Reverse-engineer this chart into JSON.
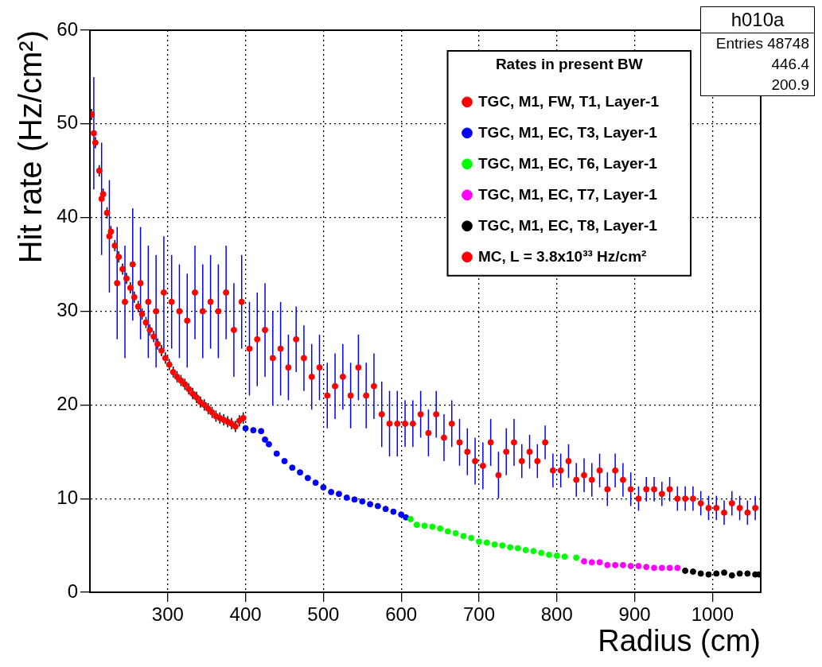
{
  "chart_data": {
    "type": "scatter",
    "xlabel": "Radius (cm)",
    "ylabel": "Hit rate (Hz/cm²)",
    "legend_title": "Rates in present BW",
    "legend": "top right",
    "grid": true,
    "marker": "circle",
    "xlim": [
      200,
      1062
    ],
    "xticks": [
      300,
      400,
      500,
      600,
      700,
      800,
      900,
      1000
    ],
    "ylim": [
      0,
      60
    ],
    "yticks": [
      0,
      10,
      20,
      30,
      40,
      50,
      60
    ],
    "annotations": [
      "h010a",
      "Entries 48748",
      "446.4",
      "200.9"
    ],
    "series": [
      {
        "name": "TGC, M1, FW, T1, Layer-1",
        "color": "#000000",
        "x": [
          202,
          207,
          212,
          217,
          222,
          227,
          232,
          237,
          242,
          247,
          252,
          257,
          262,
          267,
          272,
          277,
          282,
          287,
          292,
          297,
          302,
          307,
          312,
          317,
          322,
          327,
          332,
          337,
          342,
          347,
          352,
          357,
          362,
          367,
          372,
          377,
          382,
          387,
          392,
          397
        ],
        "values": [
          51,
          48,
          45,
          42.5,
          40.5,
          38.5,
          37,
          35.8,
          34.5,
          33.5,
          32.5,
          31.5,
          30.5,
          29.7,
          28.8,
          28,
          27.3,
          26.5,
          25.8,
          25,
          24.3,
          23.5,
          23,
          22.6,
          22.2,
          21.7,
          21.2,
          20.8,
          20.3,
          20,
          19.6,
          19.2,
          18.8,
          18.6,
          18.4,
          18.2,
          18,
          17.7,
          18.3,
          18.6
        ],
        "errors": [
          0.6,
          0.6,
          0.6,
          0.6,
          0.6,
          0.6,
          0.6,
          0.6,
          0.6,
          0.6,
          0.6,
          0.6,
          0.6,
          0.6,
          0.6,
          0.6,
          0.6,
          0.6,
          0.6,
          0.6,
          0.6,
          0.6,
          0.6,
          0.6,
          0.6,
          0.6,
          0.6,
          0.6,
          0.6,
          0.6,
          0.6,
          0.6,
          0.6,
          0.6,
          0.6,
          0.6,
          0.6,
          0.6,
          0.6,
          0.6
        ],
        "colors": [
          "#ff0000",
          "#ff0000",
          "#ff0000",
          "#ff0000",
          "#ff0000",
          "#ff0000",
          "#ff0000",
          "#ff0000",
          "#ff0000",
          "#ff0000",
          "#ff0000",
          "#ff0000",
          "#ff0000",
          "#ff0000",
          "#ff0000",
          "#ff0000",
          "#ff0000",
          "#ff0000",
          "#ff0000",
          "#ff0000",
          "#ff0000",
          "#ff0000",
          "#ff0000",
          "#ff0000",
          "#ff0000",
          "#ff0000",
          "#ff0000",
          "#ff0000",
          "#ff0000",
          "#ff0000",
          "#ff0000",
          "#ff0000",
          "#ff0000",
          "#ff0000",
          "#ff0000",
          "#ff0000",
          "#ff0000",
          "#ff0000",
          "#ff0000",
          "#ff0000"
        ]
      },
      {
        "name": "TGC, M1, EC, T3, Layer-1",
        "color": "#0000ff",
        "x": [
          400,
          410,
          420,
          425,
          430,
          440,
          450,
          460,
          470,
          480,
          490,
          500,
          510,
          520,
          530,
          540,
          550,
          560,
          570,
          580,
          590,
          600,
          606
        ],
        "values": [
          17.5,
          17.3,
          17.2,
          16.3,
          15.8,
          14.8,
          14,
          13.3,
          12.8,
          12.2,
          11.7,
          11.2,
          10.7,
          10.5,
          10.1,
          9.9,
          9.7,
          9.4,
          9.2,
          8.9,
          8.6,
          8.3,
          8
        ]
      },
      {
        "name": "TGC, M1, EC, T6, Layer-1",
        "color": "#00ff00",
        "x": [
          612,
          620,
          630,
          640,
          650,
          660,
          670,
          680,
          690,
          700,
          710,
          720,
          730,
          740,
          750,
          760,
          770,
          780,
          790,
          800,
          810,
          825
        ],
        "values": [
          7.8,
          7.2,
          7.1,
          7,
          6.8,
          6.5,
          6.3,
          6,
          5.8,
          5.4,
          5.3,
          5.1,
          5,
          4.8,
          4.7,
          4.5,
          4.4,
          4.2,
          4,
          3.9,
          3.8,
          3.7
        ]
      },
      {
        "name": "TGC, M1, EC, T7, Layer-1",
        "color": "#ff00ff",
        "x": [
          835,
          845,
          855,
          865,
          875,
          885,
          895,
          905,
          915,
          925,
          935,
          945,
          955
        ],
        "values": [
          3.3,
          3.2,
          3.2,
          2.9,
          2.9,
          2.9,
          2.8,
          2.8,
          2.7,
          2.6,
          2.6,
          2.6,
          2.6
        ]
      },
      {
        "name": "TGC, M1, EC, T8, Layer-1",
        "color": "#000000",
        "x": [
          965,
          975,
          985,
          995,
          1005,
          1015,
          1025,
          1035,
          1045,
          1055,
          1060
        ],
        "values": [
          2.3,
          2.2,
          2,
          1.9,
          2,
          2.1,
          1.8,
          2,
          2,
          1.9,
          1.9
        ]
      },
      {
        "name": "MC, L = 3.8x10³³ Hz/cm²",
        "color": "#0000ff",
        "x": [
          205,
          215,
          225,
          235,
          245,
          255,
          265,
          275,
          285,
          295,
          305,
          315,
          325,
          335,
          345,
          355,
          365,
          375,
          385,
          395,
          405,
          415,
          425,
          435,
          445,
          455,
          465,
          475,
          485,
          495,
          505,
          515,
          525,
          535,
          545,
          555,
          565,
          575,
          585,
          595,
          605,
          615,
          625,
          635,
          645,
          655,
          665,
          675,
          685,
          695,
          705,
          715,
          725,
          735,
          745,
          755,
          765,
          775,
          785,
          795,
          805,
          815,
          825,
          835,
          845,
          855,
          865,
          875,
          885,
          895,
          905,
          915,
          925,
          935,
          945,
          955,
          965,
          975,
          985,
          995,
          1005,
          1015,
          1025,
          1035,
          1045,
          1055
        ],
        "values": [
          49,
          42,
          38,
          33,
          31,
          35,
          33,
          31,
          30,
          32,
          31,
          30,
          29,
          32,
          30,
          31,
          30,
          32,
          28,
          31,
          26,
          27,
          28,
          25,
          26,
          24,
          27,
          25,
          23,
          24,
          21,
          22,
          23,
          21,
          24,
          21,
          22,
          19,
          18,
          18,
          18,
          18,
          19,
          17,
          19,
          16.5,
          18,
          16,
          15,
          14,
          13.5,
          16,
          12.5,
          15,
          16,
          14,
          15,
          14,
          16,
          13,
          13,
          14,
          12,
          12.5,
          12,
          13,
          11,
          13,
          12,
          11,
          10,
          11,
          11,
          10.5,
          11,
          10,
          10,
          10,
          9.5,
          9,
          9,
          8.5,
          9.5,
          9,
          8.5,
          9
        ],
        "errors": [
          6,
          6,
          6,
          6,
          6,
          6,
          6,
          6,
          6,
          6,
          5,
          5,
          5,
          5,
          5,
          5,
          5,
          5,
          5,
          5,
          5,
          5,
          5,
          5,
          5,
          3.5,
          3.5,
          3.5,
          3.5,
          3.5,
          3.5,
          3.5,
          3.5,
          3.5,
          3.5,
          3.5,
          3.5,
          3.5,
          3.5,
          3.5,
          2.5,
          2.5,
          2.5,
          2.5,
          2.5,
          2.5,
          2.5,
          2.5,
          2.5,
          2.5,
          2.5,
          2.5,
          2.5,
          2.5,
          2.5,
          1.8,
          1.8,
          1.8,
          1.8,
          1.8,
          1.8,
          1.8,
          1.8,
          1.8,
          1.8,
          1.8,
          1.8,
          1.8,
          1.8,
          1.8,
          1.3,
          1.3,
          1.3,
          1.3,
          1.3,
          1.3,
          1.3,
          1.3,
          1.3,
          1.3,
          1.3,
          1.3,
          1.3,
          1.3,
          1.3,
          1.3
        ],
        "colors": [
          "#ff0000",
          "#ff0000",
          "#ff0000",
          "#ff0000",
          "#ff0000",
          "#ff0000",
          "#ff0000",
          "#ff0000",
          "#ff0000",
          "#ff0000",
          "#ff0000",
          "#ff0000",
          "#ff0000",
          "#ff0000",
          "#ff0000",
          "#ff0000",
          "#ff0000",
          "#ff0000",
          "#ff0000",
          "#ff0000",
          "#ff0000",
          "#ff0000",
          "#ff0000",
          "#ff0000",
          "#ff0000",
          "#ff0000",
          "#ff0000",
          "#ff0000",
          "#ff0000",
          "#ff0000",
          "#ff0000",
          "#ff0000",
          "#ff0000",
          "#ff0000",
          "#ff0000",
          "#ff0000",
          "#ff0000",
          "#ff0000",
          "#ff0000",
          "#ff0000",
          "#ff0000",
          "#ff0000",
          "#ff0000",
          "#ff0000",
          "#ff0000",
          "#ff0000",
          "#ff0000",
          "#ff0000",
          "#ff0000",
          "#ff0000",
          "#ff0000",
          "#ff0000",
          "#ff0000",
          "#ff0000",
          "#ff0000",
          "#ff0000",
          "#ff0000",
          "#ff0000",
          "#ff0000",
          "#ff0000",
          "#ff0000",
          "#ff0000",
          "#ff0000",
          "#ff0000",
          "#ff0000",
          "#ff0000",
          "#ff0000",
          "#ff0000",
          "#ff0000",
          "#ff0000",
          "#ff0000",
          "#ff0000",
          "#ff0000",
          "#ff0000",
          "#ff0000",
          "#ff0000",
          "#ff0000",
          "#ff0000",
          "#ff0000",
          "#ff0000",
          "#ff0000",
          "#ff0000",
          "#ff0000",
          "#ff0000",
          "#ff0000",
          "#ff0000"
        ]
      }
    ]
  }
}
